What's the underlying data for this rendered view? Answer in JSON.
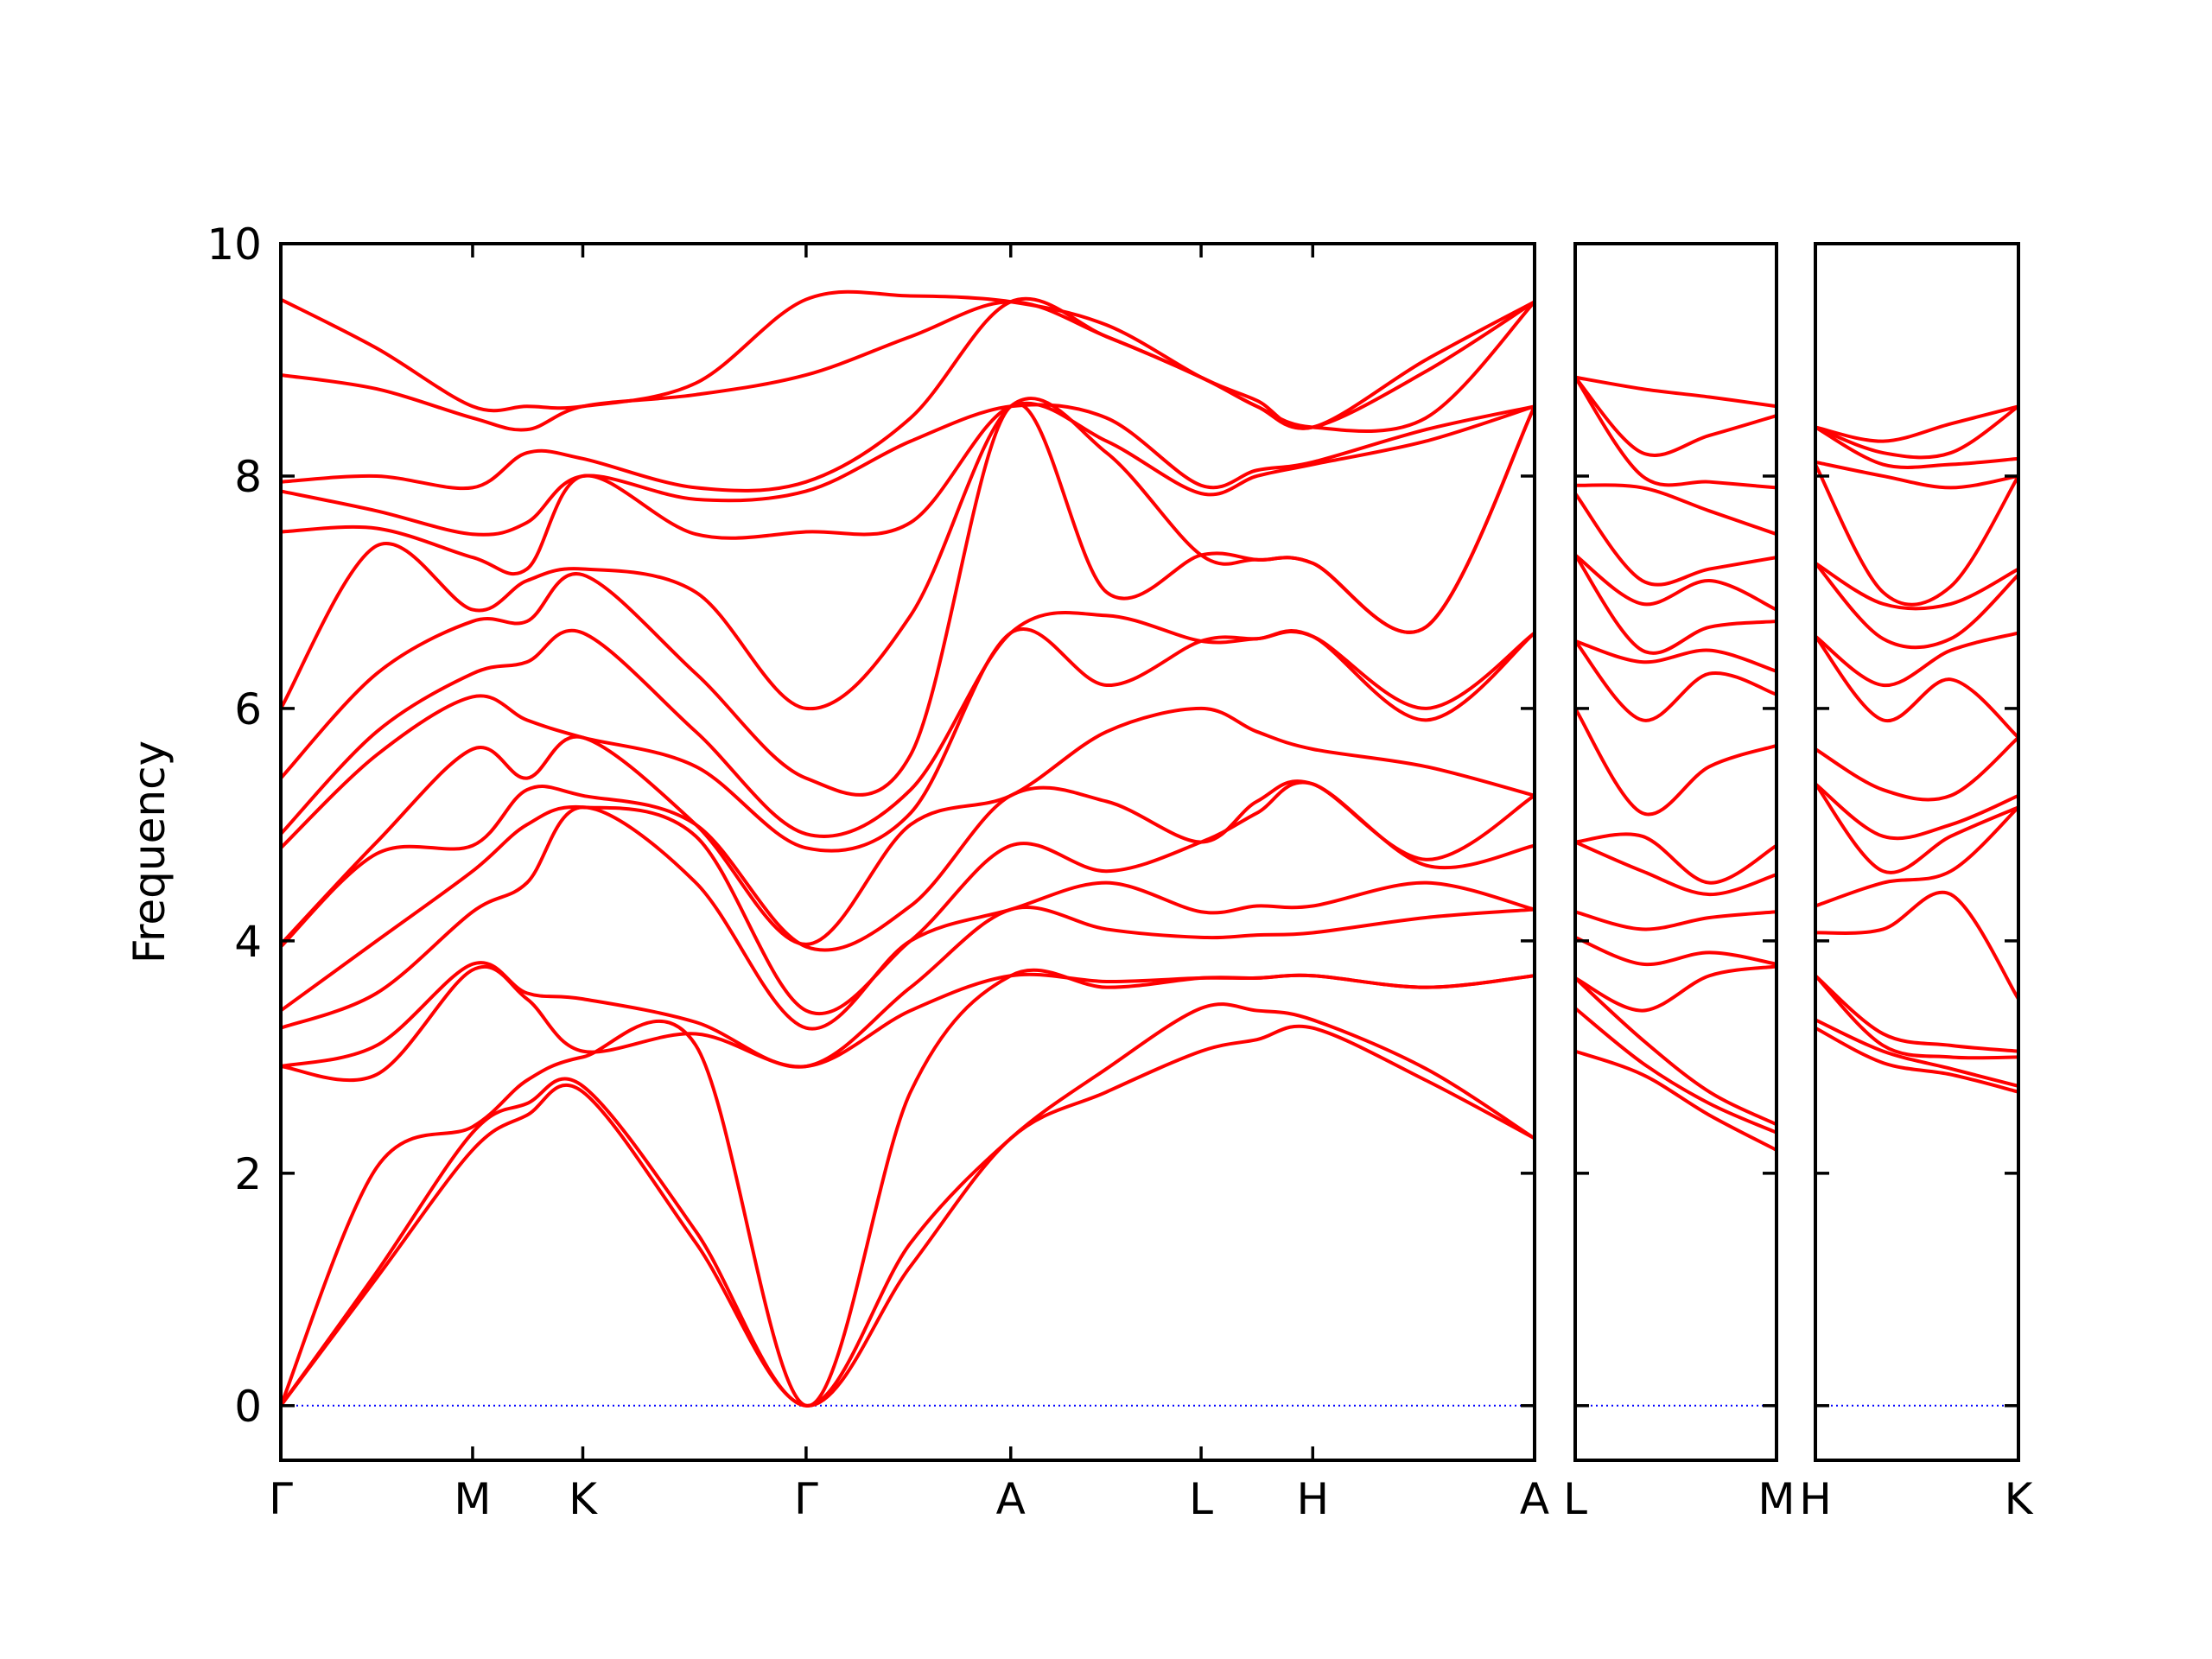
{
  "chart_data": [
    {
      "type": "line",
      "ylabel": "Frequency",
      "color": "#ff0000",
      "hlines": [
        0
      ],
      "hline_color": "#0000ff",
      "xlim": [
        0,
        8.76
      ],
      "ylim": [
        -0.47,
        10
      ],
      "yticks": [
        0,
        2,
        4,
        6,
        8,
        10
      ],
      "ytick_labels": true,
      "xticks": [
        {
          "value": 0,
          "label": "Γ"
        },
        {
          "value": 1.34,
          "label": "M"
        },
        {
          "value": 2.11,
          "label": "K"
        },
        {
          "value": 3.67,
          "label": "Γ"
        },
        {
          "value": 5.1,
          "label": "A"
        },
        {
          "value": 6.43,
          "label": "L"
        },
        {
          "value": 7.21,
          "label": "H"
        },
        {
          "value": 8.76,
          "label": "A"
        }
      ],
      "x": [
        0,
        0.67,
        1.34,
        1.72,
        2.11,
        2.9,
        3.67,
        4.4,
        5.1,
        5.77,
        6.43,
        6.82,
        7.21,
        8.0,
        8.76
      ],
      "series": [
        {
          "values": [
            0,
            1.1,
            2.2,
            2.5,
            2.7,
            1.4,
            0,
            1.2,
            2.3,
            2.7,
            3.05,
            3.15,
            3.25,
            2.8,
            2.3
          ]
        },
        {
          "values": [
            0,
            1.15,
            2.35,
            2.6,
            2.75,
            1.5,
            0,
            1.4,
            2.3,
            2.9,
            3.42,
            3.4,
            3.32,
            2.9,
            2.3
          ]
        },
        {
          "values": [
            0,
            2.05,
            2.4,
            2.8,
            3.0,
            3.1,
            0,
            2.7,
            3.7,
            3.6,
            3.68,
            3.68,
            3.7,
            3.6,
            3.7
          ]
        },
        {
          "values": [
            2.92,
            2.85,
            3.75,
            3.5,
            3.05,
            3.2,
            2.92,
            3.4,
            3.7,
            3.65,
            3.68,
            3.68,
            3.7,
            3.6,
            3.7
          ]
        },
        {
          "values": [
            2.92,
            3.1,
            3.8,
            3.55,
            3.5,
            3.3,
            2.92,
            3.6,
            4.27,
            4.1,
            4.03,
            4.05,
            4.07,
            4.2,
            4.27
          ]
        },
        {
          "values": [
            3.25,
            3.55,
            4.25,
            4.5,
            5.15,
            4.5,
            3.25,
            4.0,
            4.27,
            4.5,
            4.25,
            4.3,
            4.3,
            4.5,
            4.27
          ]
        },
        {
          "values": [
            3.4,
            4.0,
            4.6,
            5.0,
            5.15,
            4.9,
            3.4,
            4.0,
            4.82,
            4.6,
            4.85,
            5.1,
            5.35,
            4.65,
            4.82
          ]
        },
        {
          "values": [
            3.95,
            4.75,
            4.82,
            5.3,
            5.25,
            5.0,
            3.95,
            4.3,
            5.25,
            5.2,
            4.85,
            5.2,
            5.35,
            4.7,
            5.25
          ]
        },
        {
          "values": [
            3.97,
            4.85,
            5.65,
            5.4,
            5.75,
            5.0,
            3.97,
            5.0,
            5.25,
            5.8,
            6.0,
            5.8,
            5.65,
            5.5,
            5.25
          ]
        },
        {
          "values": [
            4.8,
            5.6,
            6.1,
            5.9,
            5.75,
            5.5,
            4.8,
            5.1,
            6.65,
            6.2,
            6.58,
            6.6,
            6.62,
            5.9,
            6.65
          ]
        },
        {
          "values": [
            4.92,
            5.8,
            6.3,
            6.4,
            6.65,
            5.8,
            4.92,
            5.3,
            6.65,
            6.8,
            6.58,
            6.6,
            6.62,
            6.0,
            6.65
          ]
        },
        {
          "values": [
            5.4,
            6.3,
            6.75,
            6.75,
            7.15,
            6.3,
            5.4,
            5.6,
            8.6,
            7.0,
            7.32,
            7.28,
            7.25,
            6.7,
            8.6
          ]
        },
        {
          "values": [
            6.0,
            7.4,
            6.85,
            7.1,
            7.2,
            7.0,
            6.0,
            6.8,
            8.6,
            8.2,
            7.32,
            7.28,
            7.25,
            6.7,
            8.6
          ]
        },
        {
          "values": [
            7.52,
            7.55,
            7.3,
            7.2,
            8.0,
            7.5,
            7.52,
            7.6,
            8.6,
            8.3,
            7.85,
            8.0,
            8.1,
            8.3,
            8.6
          ]
        },
        {
          "values": [
            7.87,
            7.7,
            7.5,
            7.6,
            8.0,
            7.8,
            7.87,
            8.3,
            8.6,
            8.5,
            7.92,
            8.05,
            8.12,
            8.4,
            8.6
          ]
        },
        {
          "values": [
            7.95,
            8.0,
            7.9,
            8.2,
            8.15,
            7.9,
            7.95,
            8.5,
            9.5,
            9.2,
            8.85,
            8.6,
            8.42,
            8.5,
            9.5
          ]
        },
        {
          "values": [
            8.87,
            8.75,
            8.5,
            8.4,
            8.6,
            8.7,
            8.87,
            9.2,
            9.5,
            9.2,
            8.85,
            8.6,
            8.42,
            8.9,
            9.5
          ]
        },
        {
          "values": [
            9.52,
            9.1,
            8.6,
            8.6,
            8.6,
            8.8,
            9.52,
            9.55,
            9.5,
            9.3,
            8.85,
            8.65,
            8.42,
            9.0,
            9.5
          ]
        }
      ]
    },
    {
      "type": "line",
      "color": "#ff0000",
      "hlines": [
        0
      ],
      "hline_color": "#0000ff",
      "xlim": [
        0,
        1.41
      ],
      "ylim": [
        -0.47,
        10
      ],
      "yticks": [
        0,
        2,
        4,
        6,
        8,
        10
      ],
      "ytick_labels": false,
      "xticks": [
        {
          "value": 0,
          "label": "L"
        },
        {
          "value": 1.41,
          "label": "M"
        }
      ],
      "x": [
        0,
        0.47,
        0.94,
        1.41
      ],
      "series": [
        {
          "values": [
            3.05,
            2.85,
            2.5,
            2.2
          ]
        },
        {
          "values": [
            3.42,
            2.95,
            2.6,
            2.35
          ]
        },
        {
          "values": [
            3.68,
            3.15,
            2.7,
            2.42
          ]
        },
        {
          "values": [
            3.68,
            3.4,
            3.7,
            3.78
          ]
        },
        {
          "values": [
            4.03,
            3.8,
            3.9,
            3.8
          ]
        },
        {
          "values": [
            4.25,
            4.1,
            4.2,
            4.25
          ]
        },
        {
          "values": [
            4.85,
            4.6,
            4.4,
            4.57
          ]
        },
        {
          "values": [
            4.85,
            4.9,
            4.5,
            4.82
          ]
        },
        {
          "values": [
            6.0,
            5.1,
            5.5,
            5.68
          ]
        },
        {
          "values": [
            6.58,
            5.9,
            6.3,
            6.12
          ]
        },
        {
          "values": [
            6.58,
            6.4,
            6.5,
            6.32
          ]
        },
        {
          "values": [
            7.32,
            6.5,
            6.7,
            6.75
          ]
        },
        {
          "values": [
            7.32,
            6.9,
            7.1,
            6.85
          ]
        },
        {
          "values": [
            7.85,
            7.1,
            7.2,
            7.3
          ]
        },
        {
          "values": [
            7.92,
            7.9,
            7.7,
            7.5
          ]
        },
        {
          "values": [
            8.85,
            8.0,
            7.95,
            7.9
          ]
        },
        {
          "values": [
            8.85,
            8.2,
            8.35,
            8.52
          ]
        },
        {
          "values": [
            8.85,
            8.75,
            8.68,
            8.6
          ]
        }
      ]
    },
    {
      "type": "line",
      "color": "#ff0000",
      "hlines": [
        0
      ],
      "hline_color": "#0000ff",
      "xlim": [
        0,
        1.41
      ],
      "ylim": [
        -0.47,
        10
      ],
      "yticks": [
        0,
        2,
        4,
        6,
        8,
        10
      ],
      "ytick_labels": false,
      "xticks": [
        {
          "value": 0,
          "label": "H"
        },
        {
          "value": 1.41,
          "label": "K"
        }
      ],
      "x": [
        0,
        0.47,
        0.94,
        1.41
      ],
      "series": [
        {
          "values": [
            3.25,
            2.95,
            2.85,
            2.7
          ]
        },
        {
          "values": [
            3.32,
            3.05,
            2.9,
            2.75
          ]
        },
        {
          "values": [
            3.7,
            3.1,
            3.0,
            3.0
          ]
        },
        {
          "values": [
            3.7,
            3.2,
            3.1,
            3.05
          ]
        },
        {
          "values": [
            4.07,
            4.1,
            4.4,
            3.5
          ]
        },
        {
          "values": [
            4.3,
            4.5,
            4.6,
            5.15
          ]
        },
        {
          "values": [
            5.35,
            4.6,
            4.9,
            5.15
          ]
        },
        {
          "values": [
            5.35,
            4.9,
            5.0,
            5.25
          ]
        },
        {
          "values": [
            5.65,
            5.3,
            5.25,
            5.75
          ]
        },
        {
          "values": [
            6.62,
            5.9,
            6.25,
            5.75
          ]
        },
        {
          "values": [
            6.62,
            6.2,
            6.5,
            6.65
          ]
        },
        {
          "values": [
            7.25,
            6.6,
            6.6,
            7.15
          ]
        },
        {
          "values": [
            7.25,
            6.9,
            6.9,
            7.2
          ]
        },
        {
          "values": [
            8.1,
            7.0,
            7.05,
            8.0
          ]
        },
        {
          "values": [
            8.12,
            8.0,
            7.9,
            8.0
          ]
        },
        {
          "values": [
            8.42,
            8.1,
            8.1,
            8.15
          ]
        },
        {
          "values": [
            8.42,
            8.2,
            8.2,
            8.6
          ]
        },
        {
          "values": [
            8.42,
            8.3,
            8.45,
            8.6
          ]
        }
      ]
    }
  ]
}
